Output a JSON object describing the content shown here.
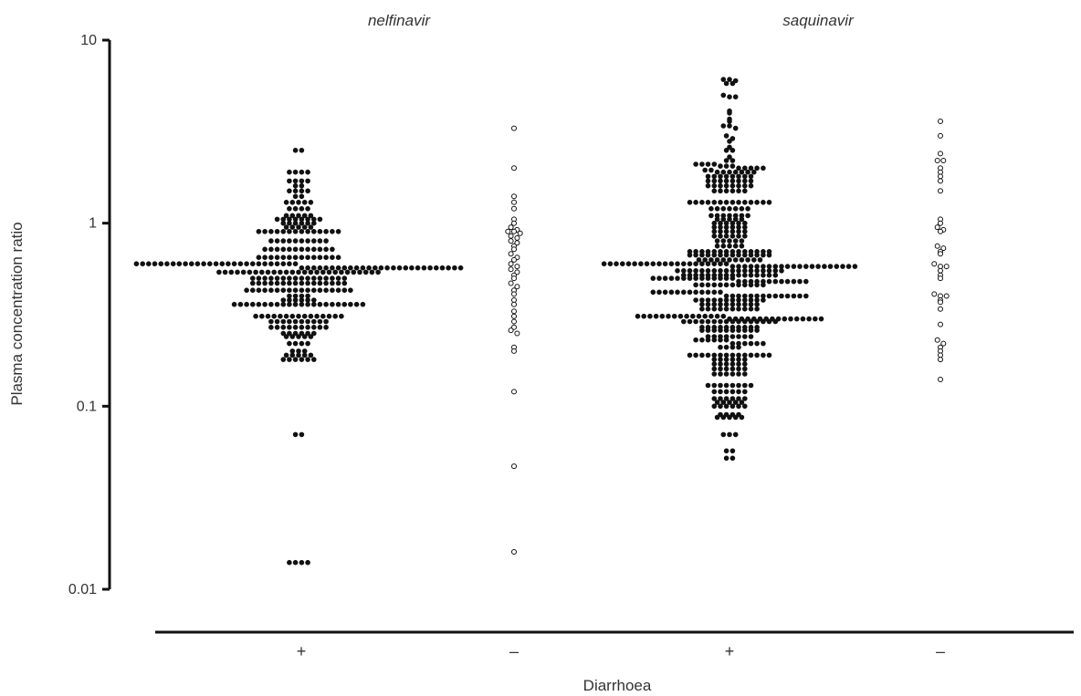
{
  "chart_data": {
    "type": "scatter",
    "subtype": "beeswarm dot plot",
    "title": "",
    "xlabel": "Diarrhoea",
    "ylabel": "Plasma concentration ratio",
    "yscale": "log",
    "ylim": [
      0.01,
      10
    ],
    "yticks": [
      {
        "value": 10,
        "label": "10"
      },
      {
        "value": 1,
        "label": "1"
      },
      {
        "value": 0.1,
        "label": "0.1"
      },
      {
        "value": 0.01,
        "label": "0.01"
      }
    ],
    "grid": false,
    "legend": "none",
    "group_labels": [
      "nelfinavir",
      "saquinavir"
    ],
    "categories": [
      "+",
      "–",
      "+",
      "–"
    ],
    "marker_styles": {
      "filled": "#111111",
      "open": "#ffffff"
    },
    "series": [
      {
        "group": "nelfinavir",
        "category": "+",
        "marker": "filled",
        "values": [
          2.5,
          2.5,
          1.9,
          1.9,
          1.9,
          1.9,
          1.7,
          1.7,
          1.7,
          1.7,
          1.6,
          1.6,
          1.5,
          1.5,
          1.5,
          1.5,
          1.4,
          1.4,
          1.3,
          1.3,
          1.3,
          1.3,
          1.3,
          1.2,
          1.2,
          1.2,
          1.2,
          1.1,
          1.1,
          1.1,
          1.1,
          1.1,
          1.05,
          1.05,
          1.05,
          1.05,
          1.05,
          1.05,
          1.05,
          1.05,
          1.0,
          1.0,
          1.0,
          1.0,
          1.0,
          1.0,
          0.95,
          0.95,
          0.95,
          0.95,
          0.95,
          0.9,
          0.9,
          0.9,
          0.9,
          0.9,
          0.9,
          0.9,
          0.9,
          0.9,
          0.9,
          0.9,
          0.9,
          0.9,
          0.9,
          0.8,
          0.8,
          0.8,
          0.8,
          0.8,
          0.8,
          0.8,
          0.8,
          0.8,
          0.8,
          0.72,
          0.72,
          0.72,
          0.72,
          0.72,
          0.72,
          0.72,
          0.72,
          0.72,
          0.72,
          0.72,
          0.72,
          0.65,
          0.65,
          0.65,
          0.65,
          0.65,
          0.65,
          0.65,
          0.65,
          0.65,
          0.65,
          0.65,
          0.65,
          0.65,
          0.65,
          0.6,
          0.6,
          0.6,
          0.6,
          0.6,
          0.6,
          0.6,
          0.6,
          0.6,
          0.6,
          0.6,
          0.6,
          0.6,
          0.6,
          0.6,
          0.6,
          0.6,
          0.6,
          0.6,
          0.6,
          0.6,
          0.6,
          0.6,
          0.6,
          0.6,
          0.6,
          0.6,
          0.57,
          0.57,
          0.57,
          0.57,
          0.57,
          0.57,
          0.57,
          0.57,
          0.57,
          0.57,
          0.57,
          0.57,
          0.57,
          0.57,
          0.57,
          0.57,
          0.57,
          0.57,
          0.57,
          0.57,
          0.57,
          0.57,
          0.57,
          0.57,
          0.57,
          0.57,
          0.57,
          0.54,
          0.54,
          0.54,
          0.54,
          0.54,
          0.54,
          0.54,
          0.54,
          0.54,
          0.54,
          0.54,
          0.54,
          0.54,
          0.54,
          0.54,
          0.54,
          0.54,
          0.54,
          0.54,
          0.54,
          0.54,
          0.54,
          0.54,
          0.54,
          0.54,
          0.54,
          0.54,
          0.5,
          0.5,
          0.5,
          0.5,
          0.5,
          0.5,
          0.5,
          0.5,
          0.5,
          0.5,
          0.5,
          0.5,
          0.5,
          0.5,
          0.5,
          0.5,
          0.47,
          0.47,
          0.47,
          0.47,
          0.47,
          0.47,
          0.47,
          0.47,
          0.47,
          0.47,
          0.47,
          0.47,
          0.47,
          0.47,
          0.47,
          0.47,
          0.43,
          0.43,
          0.43,
          0.43,
          0.43,
          0.43,
          0.43,
          0.43,
          0.43,
          0.43,
          0.43,
          0.43,
          0.43,
          0.43,
          0.43,
          0.43,
          0.43,
          0.43,
          0.4,
          0.4,
          0.4,
          0.4,
          0.38,
          0.38,
          0.38,
          0.38,
          0.38,
          0.38,
          0.36,
          0.36,
          0.36,
          0.36,
          0.36,
          0.36,
          0.36,
          0.36,
          0.36,
          0.36,
          0.36,
          0.36,
          0.36,
          0.36,
          0.36,
          0.36,
          0.36,
          0.36,
          0.36,
          0.36,
          0.36,
          0.36,
          0.31,
          0.31,
          0.31,
          0.31,
          0.31,
          0.31,
          0.31,
          0.31,
          0.31,
          0.31,
          0.31,
          0.31,
          0.31,
          0.31,
          0.31,
          0.29,
          0.29,
          0.29,
          0.29,
          0.29,
          0.29,
          0.29,
          0.29,
          0.29,
          0.29,
          0.27,
          0.27,
          0.27,
          0.27,
          0.27,
          0.27,
          0.27,
          0.27,
          0.27,
          0.27,
          0.25,
          0.25,
          0.25,
          0.25,
          0.25,
          0.25,
          0.24,
          0.24,
          0.24,
          0.24,
          0.24,
          0.22,
          0.22,
          0.22,
          0.22,
          0.2,
          0.2,
          0.2,
          0.19,
          0.19,
          0.19,
          0.19,
          0.19,
          0.18,
          0.18,
          0.18,
          0.18,
          0.18,
          0.18,
          0.07,
          0.07,
          0.014,
          0.014,
          0.014,
          0.014
        ]
      },
      {
        "group": "nelfinavir",
        "category": "–",
        "marker": "open",
        "values": [
          3.3,
          2.0,
          1.4,
          1.3,
          1.2,
          1.05,
          1.0,
          0.95,
          0.92,
          0.9,
          0.9,
          0.88,
          0.85,
          0.83,
          0.8,
          0.78,
          0.75,
          0.72,
          0.68,
          0.65,
          0.63,
          0.6,
          0.58,
          0.56,
          0.54,
          0.52,
          0.5,
          0.47,
          0.45,
          0.43,
          0.41,
          0.38,
          0.36,
          0.33,
          0.31,
          0.29,
          0.27,
          0.26,
          0.25,
          0.21,
          0.2,
          0.12,
          0.047,
          0.016
        ]
      },
      {
        "group": "saquinavir",
        "category": "+",
        "marker": "filled",
        "values": [
          6.1,
          6.1,
          6.0,
          5.8,
          5.8,
          5.0,
          4.9,
          4.9,
          4.1,
          4.0,
          3.7,
          3.6,
          3.4,
          3.4,
          3.3,
          3.0,
          2.9,
          2.8,
          2.6,
          2.5,
          2.5,
          2.3,
          2.2,
          2.2,
          2.1,
          2.1,
          2.1,
          2.1,
          2.05,
          2.05,
          2.05,
          2.0,
          2.0,
          2.0,
          2.0,
          2.0,
          1.95,
          1.95,
          1.9,
          1.9,
          1.9,
          1.9,
          1.9,
          1.9,
          1.9,
          1.8,
          1.8,
          1.8,
          1.8,
          1.8,
          1.8,
          1.8,
          1.8,
          1.7,
          1.7,
          1.7,
          1.7,
          1.7,
          1.7,
          1.7,
          1.7,
          1.6,
          1.6,
          1.6,
          1.6,
          1.6,
          1.6,
          1.6,
          1.6,
          1.5,
          1.5,
          1.5,
          1.5,
          1.5,
          1.5,
          1.3,
          1.3,
          1.3,
          1.3,
          1.3,
          1.3,
          1.3,
          1.3,
          1.3,
          1.3,
          1.3,
          1.3,
          1.3,
          1.3,
          1.2,
          1.2,
          1.2,
          1.2,
          1.2,
          1.2,
          1.2,
          1.1,
          1.1,
          1.1,
          1.1,
          1.1,
          1.1,
          1.1,
          1.05,
          1.05,
          1.05,
          1.05,
          1.05,
          1.0,
          1.0,
          1.0,
          1.0,
          1.0,
          1.0,
          0.95,
          0.95,
          0.95,
          0.95,
          0.95,
          0.95,
          0.9,
          0.9,
          0.9,
          0.9,
          0.9,
          0.9,
          0.85,
          0.85,
          0.85,
          0.85,
          0.85,
          0.85,
          0.8,
          0.8,
          0.8,
          0.8,
          0.8,
          0.75,
          0.75,
          0.75,
          0.75,
          0.75,
          0.7,
          0.7,
          0.7,
          0.7,
          0.7,
          0.7,
          0.7,
          0.7,
          0.7,
          0.7,
          0.7,
          0.7,
          0.7,
          0.7,
          0.67,
          0.67,
          0.67,
          0.67,
          0.67,
          0.67,
          0.67,
          0.67,
          0.67,
          0.67,
          0.67,
          0.67,
          0.67,
          0.67,
          0.63,
          0.63,
          0.63,
          0.63,
          0.63,
          0.63,
          0.63,
          0.63,
          0.63,
          0.63,
          0.63,
          0.6,
          0.6,
          0.6,
          0.6,
          0.6,
          0.6,
          0.6,
          0.6,
          0.6,
          0.6,
          0.6,
          0.6,
          0.6,
          0.6,
          0.6,
          0.6,
          0.6,
          0.6,
          0.6,
          0.6,
          0.6,
          0.58,
          0.58,
          0.58,
          0.58,
          0.58,
          0.58,
          0.58,
          0.58,
          0.58,
          0.58,
          0.58,
          0.58,
          0.58,
          0.58,
          0.58,
          0.58,
          0.58,
          0.58,
          0.58,
          0.58,
          0.58,
          0.55,
          0.55,
          0.55,
          0.55,
          0.55,
          0.55,
          0.55,
          0.55,
          0.55,
          0.55,
          0.55,
          0.55,
          0.55,
          0.55,
          0.55,
          0.55,
          0.55,
          0.55,
          0.52,
          0.52,
          0.52,
          0.52,
          0.52,
          0.52,
          0.52,
          0.52,
          0.52,
          0.52,
          0.52,
          0.52,
          0.52,
          0.52,
          0.52,
          0.52,
          0.5,
          0.5,
          0.5,
          0.5,
          0.5,
          0.5,
          0.5,
          0.5,
          0.5,
          0.5,
          0.5,
          0.5,
          0.5,
          0.5,
          0.48,
          0.48,
          0.48,
          0.48,
          0.48,
          0.48,
          0.48,
          0.48,
          0.48,
          0.48,
          0.48,
          0.48,
          0.46,
          0.46,
          0.46,
          0.46,
          0.46,
          0.46,
          0.46,
          0.46,
          0.46,
          0.46,
          0.46,
          0.46,
          0.42,
          0.42,
          0.42,
          0.42,
          0.42,
          0.42,
          0.42,
          0.42,
          0.42,
          0.42,
          0.42,
          0.42,
          0.4,
          0.4,
          0.4,
          0.4,
          0.4,
          0.4,
          0.4,
          0.4,
          0.4,
          0.4,
          0.4,
          0.4,
          0.4,
          0.4,
          0.38,
          0.38,
          0.38,
          0.38,
          0.38,
          0.38,
          0.38,
          0.38,
          0.38,
          0.38,
          0.38,
          0.38,
          0.36,
          0.36,
          0.36,
          0.36,
          0.36,
          0.36,
          0.36,
          0.36,
          0.36,
          0.36,
          0.34,
          0.34,
          0.34,
          0.34,
          0.34,
          0.34,
          0.34,
          0.34,
          0.34,
          0.34,
          0.31,
          0.31,
          0.31,
          0.31,
          0.31,
          0.31,
          0.31,
          0.31,
          0.31,
          0.31,
          0.31,
          0.31,
          0.31,
          0.31,
          0.31,
          0.3,
          0.3,
          0.3,
          0.3,
          0.3,
          0.3,
          0.3,
          0.3,
          0.3,
          0.3,
          0.3,
          0.3,
          0.3,
          0.3,
          0.3,
          0.3,
          0.29,
          0.29,
          0.29,
          0.29,
          0.29,
          0.29,
          0.29,
          0.29,
          0.29,
          0.29,
          0.29,
          0.29,
          0.29,
          0.29,
          0.29,
          0.29,
          0.27,
          0.27,
          0.27,
          0.27,
          0.27,
          0.27,
          0.27,
          0.27,
          0.27,
          0.27,
          0.26,
          0.26,
          0.26,
          0.26,
          0.26,
          0.26,
          0.26,
          0.26,
          0.26,
          0.26,
          0.24,
          0.24,
          0.24,
          0.24,
          0.24,
          0.24,
          0.24,
          0.24,
          0.23,
          0.23,
          0.23,
          0.23,
          0.23,
          0.23,
          0.22,
          0.22,
          0.22,
          0.22,
          0.22,
          0.22,
          0.21,
          0.21,
          0.21,
          0.21,
          0.19,
          0.19,
          0.19,
          0.19,
          0.19,
          0.19,
          0.19,
          0.19,
          0.19,
          0.19,
          0.19,
          0.19,
          0.19,
          0.19,
          0.18,
          0.18,
          0.18,
          0.18,
          0.18,
          0.18,
          0.17,
          0.17,
          0.17,
          0.17,
          0.17,
          0.17,
          0.16,
          0.16,
          0.16,
          0.16,
          0.16,
          0.16,
          0.15,
          0.15,
          0.15,
          0.15,
          0.15,
          0.15,
          0.13,
          0.13,
          0.13,
          0.13,
          0.13,
          0.13,
          0.13,
          0.13,
          0.12,
          0.12,
          0.12,
          0.12,
          0.12,
          0.12,
          0.11,
          0.11,
          0.11,
          0.11,
          0.11,
          0.11,
          0.105,
          0.105,
          0.105,
          0.105,
          0.105,
          0.1,
          0.1,
          0.1,
          0.1,
          0.1,
          0.1,
          0.09,
          0.09,
          0.09,
          0.09,
          0.087,
          0.087,
          0.087,
          0.087,
          0.087,
          0.07,
          0.07,
          0.07,
          0.057,
          0.057,
          0.052,
          0.052
        ]
      },
      {
        "group": "saquinavir",
        "category": "–",
        "marker": "open",
        "values": [
          3.6,
          3.0,
          2.4,
          2.2,
          2.2,
          2.0,
          1.9,
          1.8,
          1.7,
          1.5,
          1.05,
          1.0,
          0.95,
          0.92,
          0.9,
          0.75,
          0.73,
          0.7,
          0.68,
          0.6,
          0.58,
          0.58,
          0.55,
          0.52,
          0.5,
          0.41,
          0.4,
          0.4,
          0.38,
          0.37,
          0.34,
          0.28,
          0.23,
          0.22,
          0.21,
          0.2,
          0.19,
          0.18,
          0.14
        ]
      }
    ]
  }
}
